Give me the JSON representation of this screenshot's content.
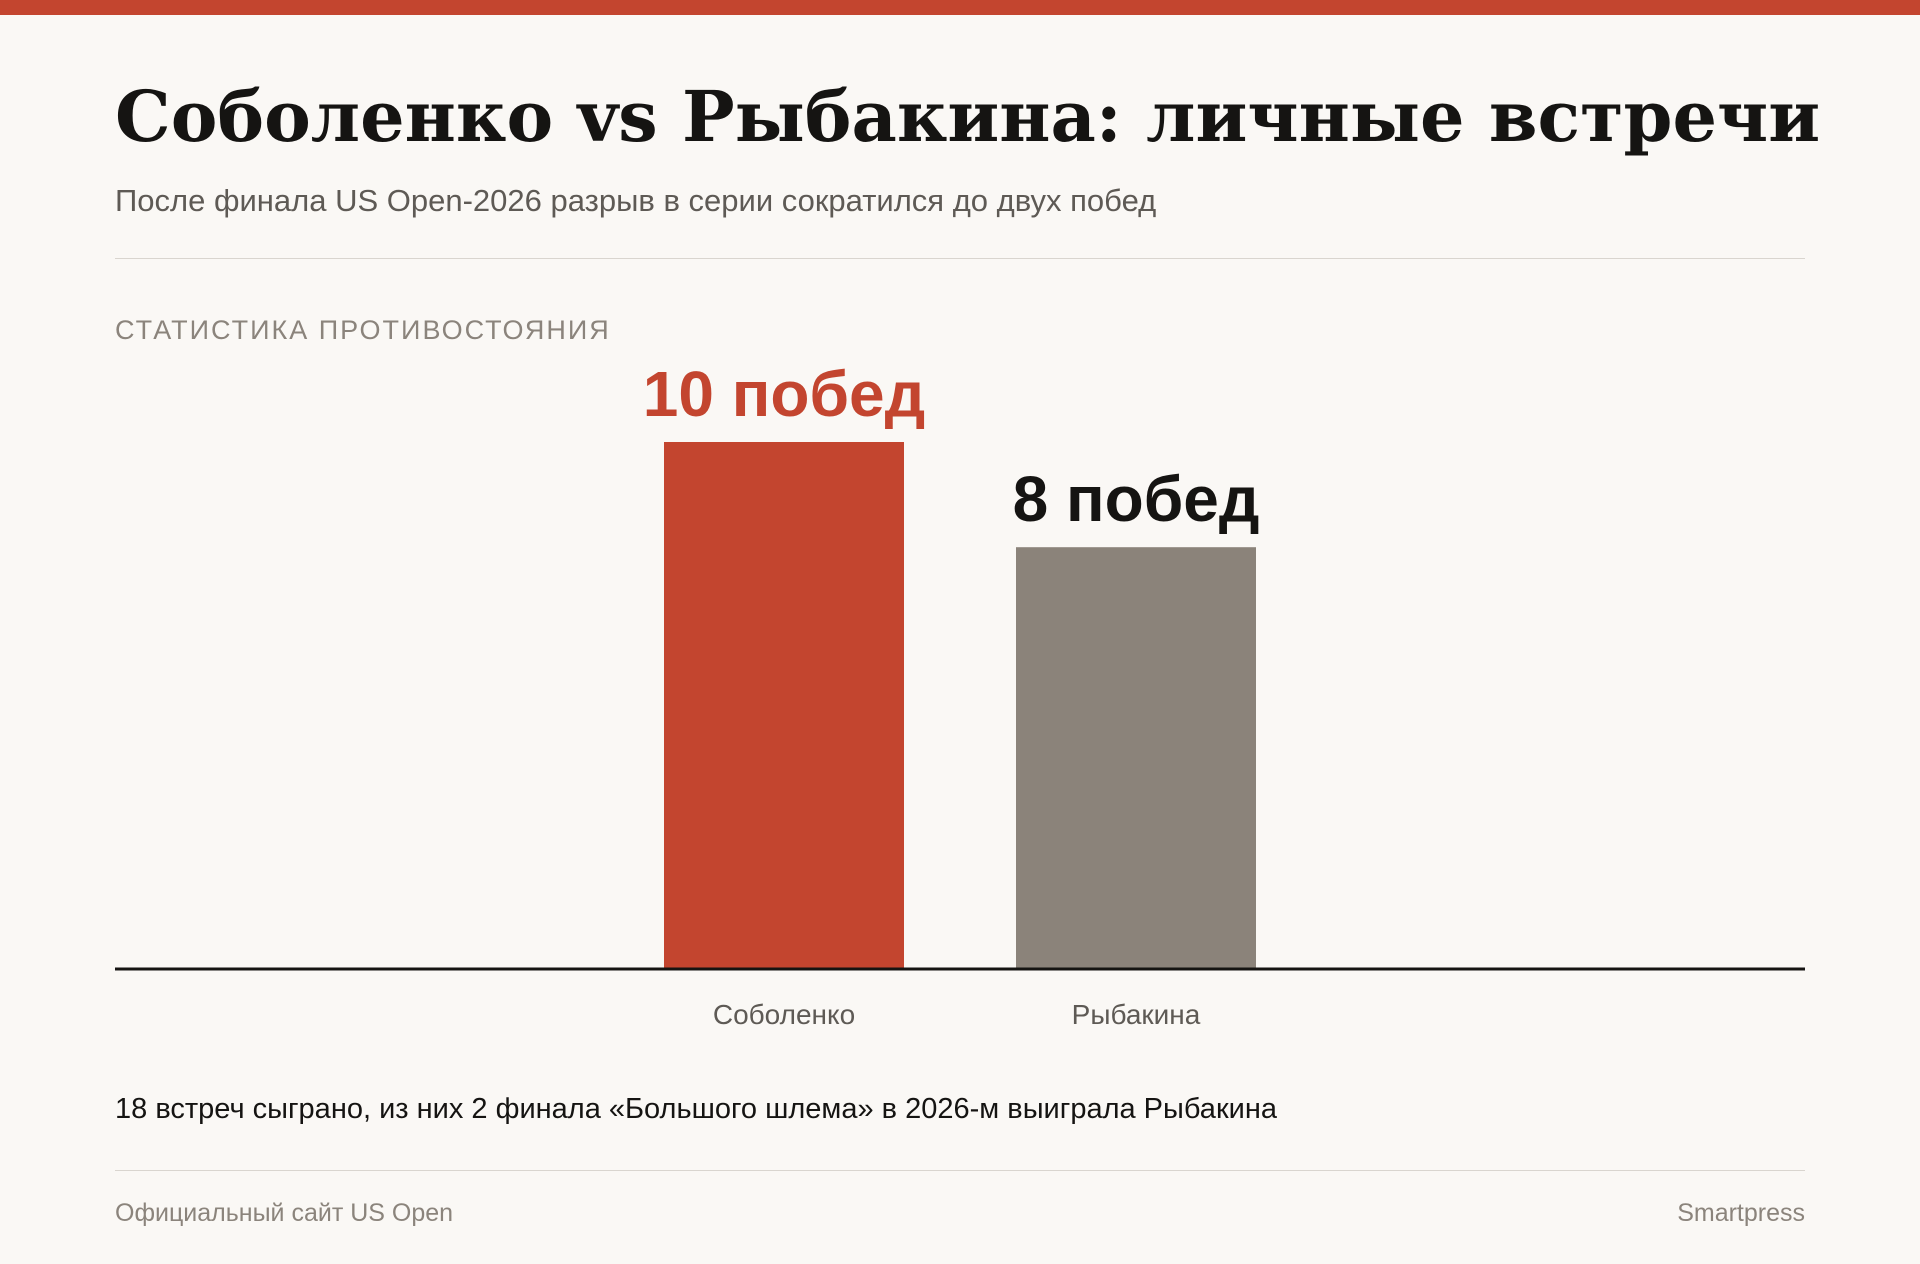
{
  "header": {
    "title": "Соболенко vs Рыбакина: личные встречи",
    "subtitle": "После финала US Open-2026 разрыв в серии сократился до двух побед"
  },
  "section_label": "СТАТИСТИКА ПРОТИВОСТОЯНИЯ",
  "colors": {
    "accent": "#c3452f",
    "secondary": "#8b837a",
    "text": "#151412",
    "muted": "#8b847c",
    "background": "#faf8f5"
  },
  "chart_data": {
    "type": "bar",
    "categories": [
      "Соболенко",
      "Рыбакина"
    ],
    "values": [
      10,
      8
    ],
    "value_labels": [
      "10 побед",
      "8 побед"
    ],
    "bar_colors": [
      "#c3452f",
      "#8b837a"
    ],
    "label_colors": [
      "#c3452f",
      "#151412"
    ],
    "ylim": [
      0,
      10
    ],
    "grid": false,
    "legend": "none"
  },
  "note": "18 встреч сыграно, из них 2 финала «Большого шлема» в 2026-м выиграла Рыбакина",
  "footer": {
    "source": "Официальный сайт US Open",
    "brand": "Smartpress"
  }
}
